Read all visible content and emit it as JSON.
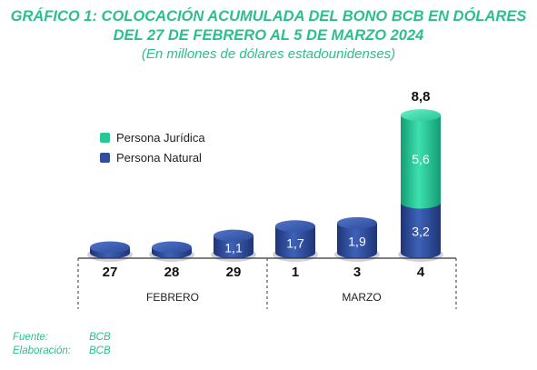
{
  "chart_data": {
    "type": "bar",
    "stacked": true,
    "title": "GRÁFICO 1: COLOCACIÓN ACUMULADA DEL BONO BCB EN DÓLARES",
    "title_line2": "DEL 27 DE FEBRERO AL 5 DE MARZO 2024",
    "subtitle": "(En millones de dólares estadounidenses)",
    "categories": [
      "27",
      "28",
      "29",
      "1",
      "3",
      "4"
    ],
    "groups": [
      {
        "label": "FEBRERO",
        "categories": [
          "27",
          "28",
          "29"
        ]
      },
      {
        "label": "MARZO",
        "categories": [
          "1",
          "3",
          "4"
        ]
      }
    ],
    "series": [
      {
        "name": "Persona Natural",
        "color": "#2f4f9e",
        "values": [
          0.1,
          0.2,
          1.1,
          1.7,
          1.9,
          3.2
        ],
        "labels": [
          "",
          "",
          "1,1",
          "1,7",
          "1,9",
          "3,2"
        ]
      },
      {
        "name": "Persona Jurídica",
        "color": "#27c79a",
        "values": [
          0,
          0,
          0,
          0,
          0,
          5.6
        ],
        "labels": [
          "",
          "",
          "",
          "",
          "",
          "5,6"
        ]
      }
    ],
    "totals": [
      "",
      "",
      "",
      "",
      "",
      "8,8"
    ],
    "legend_position": "top-left",
    "ylim": [
      0,
      8.8
    ],
    "grid": false
  },
  "footer": {
    "source_label": "Fuente:",
    "source_value": "BCB",
    "elab_label": "Elaboración:",
    "elab_value": "BCB"
  },
  "colors": {
    "title": "#2bbf8e",
    "natural": "#2f4f9e",
    "juridica": "#27c79a"
  }
}
